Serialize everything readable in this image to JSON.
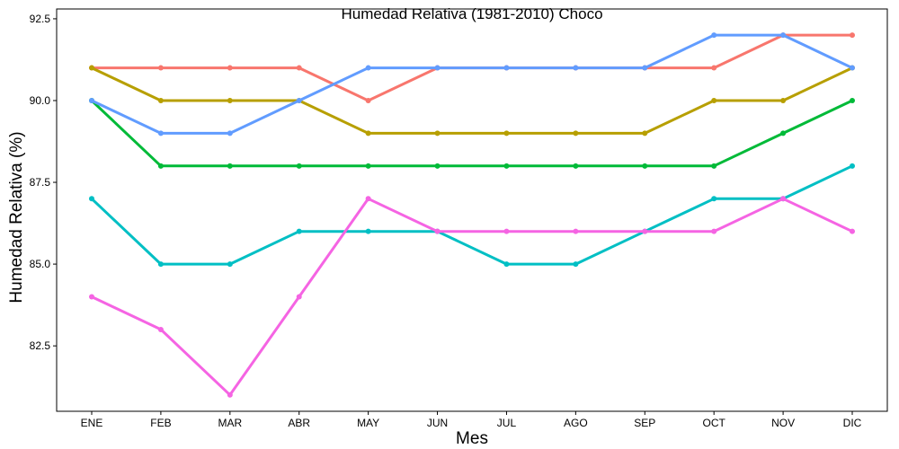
{
  "chart_data": {
    "type": "line",
    "title": "Humedad Relativa (1981-2010)  Choco",
    "xlabel": "Mes",
    "ylabel": "Humedad Relativa   (%)",
    "categories": [
      "ENE",
      "FEB",
      "MAR",
      "ABR",
      "MAY",
      "JUN",
      "JUL",
      "AGO",
      "SEP",
      "OCT",
      "NOV",
      "DIC"
    ],
    "yticks": [
      "82.5",
      "85.0",
      "87.5",
      "90.0",
      "92.5"
    ],
    "ylim": [
      80.5,
      92.8
    ],
    "grid": false,
    "legend": "none",
    "series": [
      {
        "color": "#F8766D",
        "values": [
          91,
          91,
          91,
          91,
          90,
          91,
          91,
          91,
          91,
          91,
          92,
          92
        ]
      },
      {
        "color": "#B79F00",
        "values": [
          91,
          90,
          90,
          90,
          89,
          89,
          89,
          89,
          89,
          90,
          90,
          91
        ]
      },
      {
        "color": "#00BA38",
        "values": [
          90,
          88,
          88,
          88,
          88,
          88,
          88,
          88,
          88,
          88,
          89,
          90
        ]
      },
      {
        "color": "#00BFC4",
        "values": [
          87,
          85,
          85,
          86,
          86,
          86,
          85,
          85,
          86,
          87,
          87,
          88
        ]
      },
      {
        "color": "#619CFF",
        "values": [
          90,
          89,
          89,
          90,
          91,
          91,
          91,
          91,
          91,
          92,
          92,
          91
        ]
      },
      {
        "color": "#F564E3",
        "values": [
          84,
          83,
          81,
          84,
          87,
          86,
          86,
          86,
          86,
          86,
          87,
          86
        ]
      }
    ]
  }
}
